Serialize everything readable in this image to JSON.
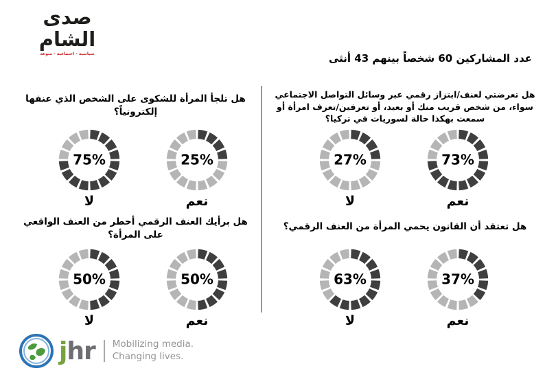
{
  "brand": {
    "logo_text": "صدى الشام",
    "logo_tagline": "سياسية - اجتماعية - منوعة",
    "logo_color": "#1d1d1b",
    "logo_accent_color": "#c62328"
  },
  "header": {
    "participants_line": "عدد المشاركين 60 شخصاً بينهم 43 أنثى"
  },
  "donut_style": {
    "segments": 16,
    "gap_degrees": 4.5,
    "dark_color": "#3f3f3f",
    "light_color": "#b5b5b5"
  },
  "questions": [
    {
      "text": "هل تلجأ المرأة للشكوى على الشخص الذي عنفها إلكترونياً؟",
      "no": {
        "label": "لا",
        "pct": 75,
        "pct_label": "75%"
      },
      "yes": {
        "label": "نعم",
        "pct": 25,
        "pct_label": "25%"
      }
    },
    {
      "text": "هل تعرضتي لعنف/ابتزاز رقمي عبر وسائل التواصل الاجتماعي سواء، من شخص قريب منك أو بعيد، أو تعرفين/تعرف امرأة أو سمعت بهكذا حالة لسوريات في تركيا؟",
      "no": {
        "label": "لا",
        "pct": 27,
        "pct_label": "27%"
      },
      "yes": {
        "label": "نعم",
        "pct": 73,
        "pct_label": "73%"
      }
    },
    {
      "text": "هل برأيك العنف الرقمي أخطر من العنف الواقعي على المرأة؟",
      "no": {
        "label": "لا",
        "pct": 50,
        "pct_label": "50%"
      },
      "yes": {
        "label": "نعم",
        "pct": 50,
        "pct_label": "50%"
      }
    },
    {
      "text": "هل تعتقد أن القانون يحمي المرأة من العنف الرقمي؟",
      "no": {
        "label": "لا",
        "pct": 63,
        "pct_label": "63%"
      },
      "yes": {
        "label": "نعم",
        "pct": 37,
        "pct_label": "37%"
      }
    }
  ],
  "chart_data": [
    {
      "type": "pie",
      "title": "هل تلجأ المرأة للشكوى على الشخص الذي عنفها إلكترونياً؟",
      "categories": [
        "لا",
        "نعم"
      ],
      "values": [
        75,
        25
      ],
      "unit": "%",
      "style": "segmented-donut-pair",
      "colors": {
        "filled": "#3f3f3f",
        "empty": "#b5b5b5"
      }
    },
    {
      "type": "pie",
      "title": "هل تعرضتي لعنف/ابتزاز رقمي عبر وسائل التواصل الاجتماعي سواء، من شخص قريب منك أو بعيد، أو تعرفين/تعرف امرأة أو سمعت بهكذا حالة لسوريات في تركيا؟",
      "categories": [
        "لا",
        "نعم"
      ],
      "values": [
        27,
        73
      ],
      "unit": "%",
      "style": "segmented-donut-pair",
      "colors": {
        "filled": "#3f3f3f",
        "empty": "#b5b5b5"
      }
    },
    {
      "type": "pie",
      "title": "هل برأيك العنف الرقمي أخطر من العنف الواقعي على المرأة؟",
      "categories": [
        "لا",
        "نعم"
      ],
      "values": [
        50,
        50
      ],
      "unit": "%",
      "style": "segmented-donut-pair",
      "colors": {
        "filled": "#3f3f3f",
        "empty": "#b5b5b5"
      }
    },
    {
      "type": "pie",
      "title": "هل تعتقد أن القانون يحمي المرأة من العنف الرقمي؟",
      "categories": [
        "لا",
        "نعم"
      ],
      "values": [
        63,
        37
      ],
      "unit": "%",
      "style": "segmented-donut-pair",
      "colors": {
        "filled": "#3f3f3f",
        "empty": "#b5b5b5"
      }
    }
  ],
  "footer": {
    "logo_j": "j",
    "logo_hr": "hr",
    "tagline_line1": "Mobilizing media.",
    "tagline_line2": "Changing lives.",
    "globe_icon": "globe-icon",
    "colors": {
      "j": "#76a240",
      "hr": "#6d6e71",
      "tagline": "#939598",
      "globe_blue": "#2d74b5",
      "globe_green": "#4e9a3f"
    }
  }
}
